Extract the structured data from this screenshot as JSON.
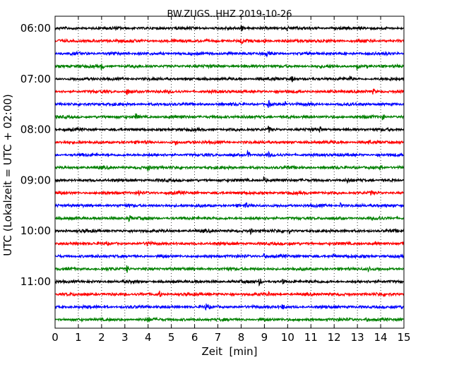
{
  "chart_data": {
    "type": "line",
    "title": "BW.ZUGS..HHZ 2019-10-26",
    "xlabel": "Zeit  [min]",
    "ylabel": "UTC (Lokalzeit = UTC + 02:00)",
    "xlim": [
      0,
      15
    ],
    "x_ticks": [
      "0",
      "1",
      "2",
      "3",
      "4",
      "5",
      "6",
      "7",
      "8",
      "9",
      "10",
      "11",
      "12",
      "13",
      "14",
      "15"
    ],
    "y_tick_labels": [
      "06:00",
      "07:00",
      "08:00",
      "09:00",
      "10:00",
      "11:00"
    ],
    "grid": "vertical dotted",
    "trace_interval_min": 15,
    "trace_colors": [
      "#000000",
      "#ff0000",
      "#0000ff",
      "#008000"
    ],
    "traces": [
      {
        "start": "06:00",
        "color": "#000000",
        "events_min": [
          8.0,
          10.0
        ]
      },
      {
        "start": "06:15",
        "color": "#ff0000",
        "events_min": [
          8.0,
          9.0
        ]
      },
      {
        "start": "06:30",
        "color": "#0000ff",
        "events_min": [
          2.5,
          9.1
        ]
      },
      {
        "start": "06:45",
        "color": "#008000",
        "events_min": [
          2.0,
          13.0
        ]
      },
      {
        "start": "07:00",
        "color": "#000000",
        "events_min": [
          10.2,
          12.7
        ]
      },
      {
        "start": "07:15",
        "color": "#ff0000",
        "events_min": [
          3.1,
          13.7
        ]
      },
      {
        "start": "07:30",
        "color": "#0000ff",
        "events_min": [
          9.2,
          9.9
        ]
      },
      {
        "start": "07:45",
        "color": "#008000",
        "events_min": [
          3.5,
          14.1
        ]
      },
      {
        "start": "08:00",
        "color": "#000000",
        "events_min": [
          9.2,
          11.4
        ]
      },
      {
        "start": "08:15",
        "color": "#ff0000",
        "events_min": [
          5.2,
          13.5
        ]
      },
      {
        "start": "08:30",
        "color": "#0000ff",
        "events_min": [
          8.3,
          9.2
        ]
      },
      {
        "start": "08:45",
        "color": "#008000",
        "events_min": [
          4.0,
          14.0
        ]
      },
      {
        "start": "09:00",
        "color": "#000000",
        "events_min": [
          9.0,
          12.6
        ]
      },
      {
        "start": "09:15",
        "color": "#ff0000",
        "events_min": [
          3.6,
          13.6
        ]
      },
      {
        "start": "09:30",
        "color": "#0000ff",
        "events_min": [
          8.2,
          12.3
        ]
      },
      {
        "start": "09:45",
        "color": "#008000",
        "events_min": [
          3.2,
          13.9
        ]
      },
      {
        "start": "10:00",
        "color": "#000000",
        "events_min": [
          8.4,
          10.1
        ]
      },
      {
        "start": "10:15",
        "color": "#ff0000",
        "events_min": [
          4.0,
          13.8
        ]
      },
      {
        "start": "10:30",
        "color": "#0000ff",
        "events_min": [
          9.0,
          12.0
        ]
      },
      {
        "start": "10:45",
        "color": "#008000",
        "events_min": [
          3.1,
          13.5
        ]
      },
      {
        "start": "11:00",
        "color": "#000000",
        "events_min": [
          8.8,
          9.8
        ]
      },
      {
        "start": "11:15",
        "color": "#ff0000",
        "events_min": [
          4.5,
          9.2
        ]
      },
      {
        "start": "11:30",
        "color": "#0000ff",
        "events_min": [
          6.5,
          9.8
        ]
      },
      {
        "start": "11:45",
        "color": "#008000",
        "events_min": [
          4.0,
          13.4
        ]
      }
    ]
  }
}
